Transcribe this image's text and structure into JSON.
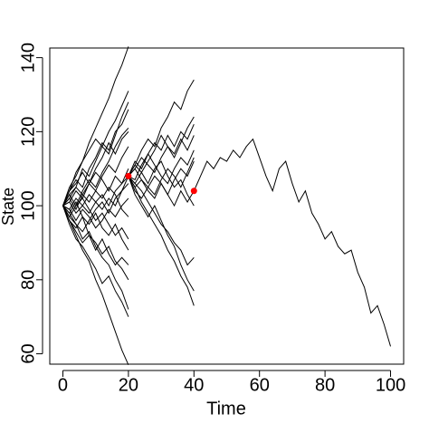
{
  "chart_data": {
    "type": "line",
    "xlabel": "Time",
    "ylabel": "State",
    "xlim": [
      -4,
      104
    ],
    "ylim": [
      57.2,
      142.6
    ],
    "xticks": [
      0,
      20,
      40,
      60,
      80,
      100
    ],
    "yticks": [
      60,
      80,
      100,
      120,
      140
    ],
    "color": "#000000",
    "series": [
      {
        "x": [
          0,
          2,
          4,
          6,
          8,
          10,
          12,
          14,
          16,
          18,
          20
        ],
        "values": [
          100,
          104,
          109,
          112,
          117,
          121,
          125,
          129,
          134,
          138,
          143
        ]
      },
      {
        "x": [
          0,
          2,
          4,
          6,
          8,
          10,
          12,
          14,
          16,
          18,
          20
        ],
        "values": [
          100,
          96,
          92,
          88,
          85,
          80,
          76,
          71,
          66,
          61,
          57
        ]
      },
      {
        "x": [
          0,
          2,
          4,
          6,
          8,
          10,
          12,
          14,
          16,
          18,
          20
        ],
        "values": [
          100,
          103,
          105,
          110,
          108,
          112,
          116,
          114,
          119,
          124,
          128
        ]
      },
      {
        "x": [
          0,
          2,
          4,
          6,
          8,
          10,
          12,
          14,
          16,
          18,
          20
        ],
        "values": [
          100,
          97,
          95,
          91,
          93,
          89,
          86,
          84,
          80,
          77,
          72
        ]
      },
      {
        "x": [
          0,
          2,
          4,
          6,
          8,
          10,
          12,
          14,
          16,
          18,
          20
        ],
        "values": [
          100,
          102,
          99,
          103,
          106,
          104,
          108,
          111,
          109,
          113,
          116
        ]
      },
      {
        "x": [
          0,
          2,
          4,
          6,
          8,
          10,
          12,
          14,
          16,
          18,
          20
        ],
        "values": [
          100,
          98,
          101,
          97,
          95,
          98,
          94,
          92,
          95,
          91,
          88
        ]
      },
      {
        "x": [
          0,
          2,
          4,
          6,
          8,
          10,
          12,
          14,
          16,
          18,
          20
        ],
        "values": [
          100,
          101,
          104,
          102,
          106,
          109,
          107,
          104,
          108,
          106,
          110
        ]
      },
      {
        "x": [
          0,
          2,
          4,
          6,
          8,
          10,
          12,
          14,
          16,
          18,
          20
        ],
        "values": [
          100,
          99,
          96,
          99,
          97,
          94,
          96,
          99,
          97,
          100,
          102
        ]
      },
      {
        "x": [
          0,
          2,
          4,
          6,
          8,
          10,
          12,
          14,
          16,
          18,
          20
        ],
        "values": [
          100,
          104,
          107,
          105,
          110,
          113,
          117,
          115,
          120,
          122,
          126
        ]
      },
      {
        "x": [
          0,
          2,
          4,
          6,
          8,
          10,
          12,
          14,
          16,
          18,
          20
        ],
        "values": [
          100,
          96,
          94,
          97,
          92,
          90,
          87,
          89,
          85,
          83,
          80
        ]
      },
      {
        "x": [
          0,
          2,
          4,
          6,
          8,
          10,
          12,
          14,
          16,
          18,
          20
        ],
        "values": [
          100,
          102,
          105,
          103,
          101,
          104,
          102,
          105,
          103,
          99,
          97
        ]
      },
      {
        "x": [
          0,
          2,
          4,
          6,
          8,
          10,
          12,
          14,
          16,
          18,
          20
        ],
        "values": [
          100,
          98,
          95,
          93,
          96,
          99,
          101,
          98,
          102,
          104,
          106
        ]
      },
      {
        "x": [
          0,
          2,
          4,
          6,
          8,
          10,
          12,
          14,
          16,
          18,
          20
        ],
        "values": [
          100,
          105,
          108,
          112,
          115,
          118,
          116,
          120,
          123,
          127,
          131
        ]
      },
      {
        "x": [
          0,
          2,
          4,
          6,
          8,
          10,
          12,
          14,
          16,
          18,
          20
        ],
        "values": [
          100,
          95,
          91,
          89,
          86,
          83,
          79,
          81,
          77,
          74,
          70
        ]
      },
      {
        "x": [
          0,
          2,
          4,
          6,
          8,
          10,
          12,
          14,
          16,
          18,
          20
        ],
        "values": [
          100,
          103,
          100,
          104,
          107,
          105,
          109,
          112,
          116,
          119,
          121
        ]
      },
      {
        "x": [
          0,
          2,
          4,
          6,
          8,
          10,
          12,
          14,
          16,
          18,
          20
        ],
        "values": [
          100,
          97,
          100,
          102,
          99,
          96,
          98,
          95,
          92,
          94,
          91
        ]
      },
      {
        "x": [
          0,
          2,
          4,
          6,
          8,
          10,
          12,
          14,
          16,
          18,
          20
        ],
        "values": [
          100,
          104,
          106,
          109,
          106,
          110,
          113,
          117,
          114,
          118,
          120
        ]
      },
      {
        "x": [
          0,
          2,
          4,
          6,
          8,
          10,
          12,
          14,
          16,
          18,
          20
        ],
        "values": [
          100,
          96,
          93,
          90,
          92,
          88,
          91,
          87,
          84,
          86,
          84
        ]
      },
      {
        "x": [
          0,
          2,
          4,
          6,
          8,
          10,
          12,
          14,
          16,
          18,
          20
        ],
        "values": [
          100,
          101,
          98,
          100,
          103,
          101,
          99,
          102,
          100,
          104,
          108
        ]
      },
      {
        "x": [
          0,
          2,
          4,
          6,
          8,
          10,
          12,
          14,
          16,
          18,
          20
        ],
        "values": [
          100,
          99,
          102,
          100,
          98,
          101,
          103,
          100,
          104,
          106,
          108
        ]
      },
      {
        "x": [
          20,
          22,
          24,
          26,
          28,
          30,
          32,
          34,
          36,
          38,
          40
        ],
        "values": [
          108,
          111,
          115,
          118,
          116,
          121,
          124,
          128,
          126,
          131,
          134
        ]
      },
      {
        "x": [
          20,
          22,
          24,
          26,
          28,
          30,
          32,
          34,
          36,
          38,
          40
        ],
        "values": [
          108,
          105,
          101,
          98,
          95,
          92,
          88,
          85,
          81,
          78,
          73
        ]
      },
      {
        "x": [
          20,
          22,
          24,
          26,
          28,
          30,
          32,
          34,
          36,
          38,
          40
        ],
        "values": [
          108,
          106,
          104,
          101,
          98,
          95,
          93,
          90,
          88,
          84,
          86
        ]
      },
      {
        "x": [
          20,
          22,
          24,
          26,
          28,
          30,
          32,
          34,
          36,
          38,
          40
        ],
        "values": [
          108,
          112,
          110,
          114,
          117,
          115,
          119,
          116,
          120,
          118,
          122
        ]
      },
      {
        "x": [
          20,
          22,
          24,
          26,
          28,
          30,
          32,
          34,
          36,
          38,
          40
        ],
        "values": [
          108,
          105,
          107,
          104,
          102,
          106,
          103,
          100,
          104,
          101,
          104
        ]
      },
      {
        "x": [
          20,
          22,
          24,
          26,
          28,
          30,
          32,
          34,
          36,
          38,
          40
        ],
        "values": [
          108,
          110,
          113,
          111,
          109,
          113,
          116,
          114,
          118,
          115,
          119
        ]
      },
      {
        "x": [
          20,
          22,
          24,
          26,
          28,
          30,
          32,
          34,
          36,
          38,
          40
        ],
        "values": [
          108,
          104,
          102,
          105,
          108,
          106,
          103,
          107,
          110,
          108,
          112
        ]
      },
      {
        "x": [
          20,
          22,
          24,
          26,
          28,
          30,
          32,
          34,
          36,
          38,
          40
        ],
        "values": [
          108,
          111,
          109,
          106,
          110,
          112,
          108,
          105,
          107,
          103,
          100
        ]
      },
      {
        "x": [
          20,
          22,
          24,
          26,
          28,
          30,
          32,
          34,
          36,
          38,
          40
        ],
        "values": [
          108,
          106,
          109,
          112,
          115,
          119,
          116,
          113,
          117,
          121,
          124
        ]
      },
      {
        "x": [
          20,
          22,
          24,
          26,
          28,
          30,
          32,
          34,
          36,
          38,
          40
        ],
        "values": [
          108,
          103,
          100,
          97,
          100,
          96,
          92,
          89,
          84,
          80,
          77
        ]
      },
      {
        "x": [
          20,
          22,
          24,
          26,
          28,
          30,
          32,
          34,
          36,
          38,
          40
        ],
        "values": [
          108,
          110,
          107,
          105,
          103,
          107,
          110,
          108,
          105,
          109,
          113
        ]
      },
      {
        "x": [
          20,
          22,
          24,
          26,
          28,
          30,
          32,
          34,
          36,
          38,
          40
        ],
        "values": [
          108,
          107,
          111,
          114,
          111,
          108,
          106,
          110,
          113,
          111,
          115
        ]
      },
      {
        "x": [
          40,
          42,
          44,
          46,
          48,
          50,
          52,
          54,
          56,
          58,
          60,
          62,
          64,
          66,
          68,
          70,
          72,
          74,
          76,
          78,
          80,
          82,
          84,
          86,
          88,
          90,
          92,
          94,
          96,
          98,
          100
        ],
        "values": [
          104,
          108,
          112,
          110,
          113,
          112,
          115,
          113,
          116,
          118,
          113,
          108,
          104,
          110,
          112,
          106,
          101,
          104,
          98,
          95,
          91,
          93,
          89,
          87,
          88,
          82,
          78,
          71,
          73,
          68,
          62
        ]
      }
    ],
    "markers": {
      "color": "#ff0000",
      "x": [
        20,
        40
      ],
      "values": [
        108,
        104
      ]
    }
  }
}
